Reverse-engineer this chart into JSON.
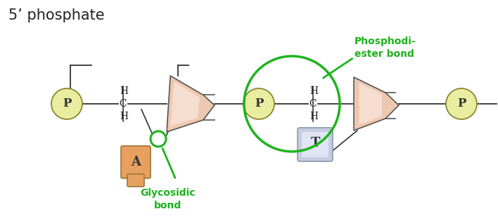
{
  "bg_color": "#ffffff",
  "green_color": "#1db31d",
  "p_circle_color": "#e8eda0",
  "p_circle_edge": "#888833",
  "sugar_color_light": "#f5e0d0",
  "sugar_color_dark": "#c8876a",
  "sugar_edge_color": "#666666",
  "base_A_color_top": "#e8a060",
  "base_A_color_bot": "#f0c090",
  "base_A_edge": "#888844",
  "base_T_color_top": "#c8cce0",
  "base_T_color_bot": "#e8eaf8",
  "base_T_edge": "#8899aa",
  "bond_line_color": "#333333",
  "title": "5’ phosphate",
  "label_phosphodi": "Phosphodi-\nester bond",
  "label_glycosidic": "Glycosidic\nbond"
}
